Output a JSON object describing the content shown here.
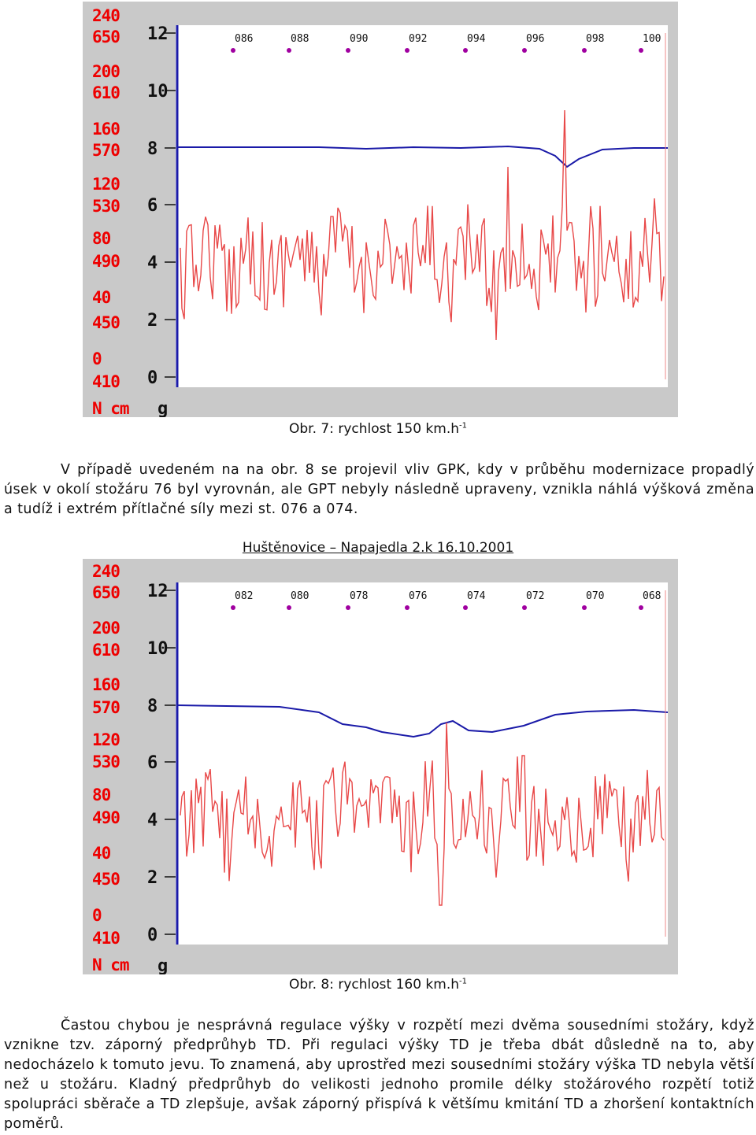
{
  "figure1": {
    "scale_labels": [
      {
        "top": "240",
        "bottom": "650"
      },
      {
        "top": "200",
        "bottom": "610"
      },
      {
        "top": "160",
        "bottom": "570"
      },
      {
        "top": "120",
        "bottom": "530"
      },
      {
        "top": "80",
        "bottom": "490"
      },
      {
        "top": "40",
        "bottom": "450"
      },
      {
        "top": "0",
        "bottom": "410"
      }
    ],
    "unit_left": "N cm",
    "unit_right": "g",
    "y_ticks": [
      "12",
      "10",
      "8",
      "6",
      "4",
      "2",
      "0"
    ],
    "markers": [
      "086",
      "088",
      "090",
      "092",
      "094",
      "096",
      "098",
      "100"
    ],
    "caption": "Obr. 7: rychlost 150 km.h",
    "caption_sup": "-1",
    "colors": {
      "force": "#e84848",
      "height": "#1a1aa8",
      "marker": "#a000a0"
    }
  },
  "paragraph1": "V případě uvedeném na na obr. 8 se projevil vliv GPK, kdy v průběhu modernizace propadlý úsek v okolí stožáru 76 byl vyrovnán, ale GPT nebyly následně upraveny, vznikla náhlá výšková změna a tudíž i extrém přítlačné síly mezi st. 076 a 074.",
  "graph2_title": "Huštěnovice – Napajedla 2.k 16.10.2001",
  "figure2": {
    "scale_labels": [
      {
        "top": "240",
        "bottom": "650"
      },
      {
        "top": "200",
        "bottom": "610"
      },
      {
        "top": "160",
        "bottom": "570"
      },
      {
        "top": "120",
        "bottom": "530"
      },
      {
        "top": "80",
        "bottom": "490"
      },
      {
        "top": "40",
        "bottom": "450"
      },
      {
        "top": "0",
        "bottom": "410"
      }
    ],
    "unit_left": "N cm",
    "unit_right": "g",
    "y_ticks": [
      "12",
      "10",
      "8",
      "6",
      "4",
      "2",
      "0"
    ],
    "markers": [
      "082",
      "080",
      "078",
      "076",
      "074",
      "072",
      "070",
      "068"
    ],
    "caption": "Obr. 8: rychlost 160 km.h",
    "caption_sup": "-1"
  },
  "paragraph2": "Častou chybou je nesprávná regulace výšky v rozpětí mezi dvěma sousedními stožáry, když vznikne tzv. záporný předprůhyb TD. Při regulaci výšky TD je třeba dbát důsledně na to, aby nedocházelo k tomuto jevu. To znamená, aby uprostřed mezi sousedními stožáry výška TD nebyla větší než u stožáru. Kladný předprůhyb do velikosti jednoho promile délky stožárového rozpětí totiž spolupráci sběrače a TD zlepšuje, avšak záporný přispívá k většímu kmitání TD a zhoršení kontaktních poměrů."
}
